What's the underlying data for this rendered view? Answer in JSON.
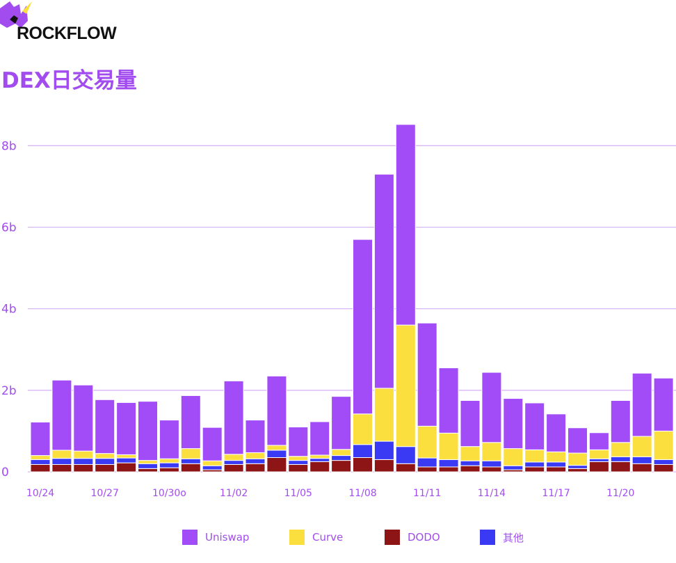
{
  "brand": {
    "name": "ROCKFLOW"
  },
  "chart_data": {
    "type": "bar",
    "stacked": true,
    "title": "DEX日交易量",
    "xlabel": "",
    "ylabel": "",
    "ylim": [
      0,
      8.5
    ],
    "yticks": [
      {
        "value": 0,
        "label": "0"
      },
      {
        "value": 2,
        "label": "2b"
      },
      {
        "value": 4,
        "label": "4b"
      },
      {
        "value": 6,
        "label": "6b"
      },
      {
        "value": 8,
        "label": "8b"
      }
    ],
    "grid": true,
    "legend_position": "bottom",
    "x_labels": [
      {
        "index": 0,
        "label": "10/24"
      },
      {
        "index": 3,
        "label": "10/27"
      },
      {
        "index": 6,
        "label": "10/30o"
      },
      {
        "index": 9,
        "label": "11/02"
      },
      {
        "index": 12,
        "label": "11/05"
      },
      {
        "index": 15,
        "label": "11/08"
      },
      {
        "index": 18,
        "label": "11/11"
      },
      {
        "index": 21,
        "label": "11/14"
      },
      {
        "index": 24,
        "label": "11/17"
      },
      {
        "index": 27,
        "label": "11/20"
      }
    ],
    "categories": [
      "10/24",
      "10/25",
      "10/26",
      "10/27",
      "10/28",
      "10/29",
      "10/30",
      "10/31",
      "11/01",
      "11/02",
      "11/03",
      "11/04",
      "11/05",
      "11/06",
      "11/07",
      "11/08",
      "11/09",
      "11/10",
      "11/11",
      "11/12",
      "11/13",
      "11/14",
      "11/15",
      "11/16",
      "11/17",
      "11/18",
      "11/19",
      "11/20",
      "11/21",
      "11/22"
    ],
    "series": [
      {
        "name": "DODO",
        "color": "#8e1516",
        "values": [
          0.18,
          0.18,
          0.18,
          0.18,
          0.22,
          0.08,
          0.1,
          0.2,
          0.05,
          0.18,
          0.2,
          0.35,
          0.18,
          0.25,
          0.28,
          0.35,
          0.3,
          0.2,
          0.12,
          0.12,
          0.15,
          0.12,
          0.05,
          0.12,
          0.12,
          0.08,
          0.25,
          0.25,
          0.2,
          0.18
        ]
      },
      {
        "name": "其他",
        "color": "#3a3af4",
        "values": [
          0.12,
          0.15,
          0.15,
          0.15,
          0.12,
          0.12,
          0.12,
          0.12,
          0.1,
          0.1,
          0.12,
          0.18,
          0.1,
          0.08,
          0.12,
          0.32,
          0.45,
          0.42,
          0.22,
          0.18,
          0.12,
          0.15,
          0.1,
          0.12,
          0.12,
          0.08,
          0.07,
          0.12,
          0.17,
          0.12
        ]
      },
      {
        "name": "Curve",
        "color": "#fbdf3e",
        "values": [
          0.1,
          0.2,
          0.18,
          0.12,
          0.08,
          0.08,
          0.1,
          0.25,
          0.12,
          0.15,
          0.15,
          0.12,
          0.1,
          0.08,
          0.15,
          0.75,
          1.3,
          2.98,
          0.78,
          0.65,
          0.35,
          0.45,
          0.42,
          0.3,
          0.25,
          0.3,
          0.22,
          0.35,
          0.5,
          0.7
        ]
      },
      {
        "name": "Uniswap",
        "color": "#a24cf7",
        "values": [
          0.82,
          1.72,
          1.62,
          1.32,
          1.28,
          1.45,
          0.95,
          1.3,
          0.82,
          1.8,
          0.8,
          1.7,
          0.72,
          0.82,
          1.3,
          4.28,
          5.25,
          4.92,
          2.53,
          1.6,
          1.13,
          1.72,
          1.23,
          1.15,
          0.93,
          0.62,
          0.42,
          1.03,
          1.55,
          1.3
        ]
      }
    ],
    "legend": [
      {
        "name": "Uniswap",
        "color": "#a24cf7"
      },
      {
        "name": "Curve",
        "color": "#fbdf3e"
      },
      {
        "name": "DODO",
        "color": "#8e1516"
      },
      {
        "name": "其他",
        "color": "#3a3af4"
      }
    ]
  }
}
